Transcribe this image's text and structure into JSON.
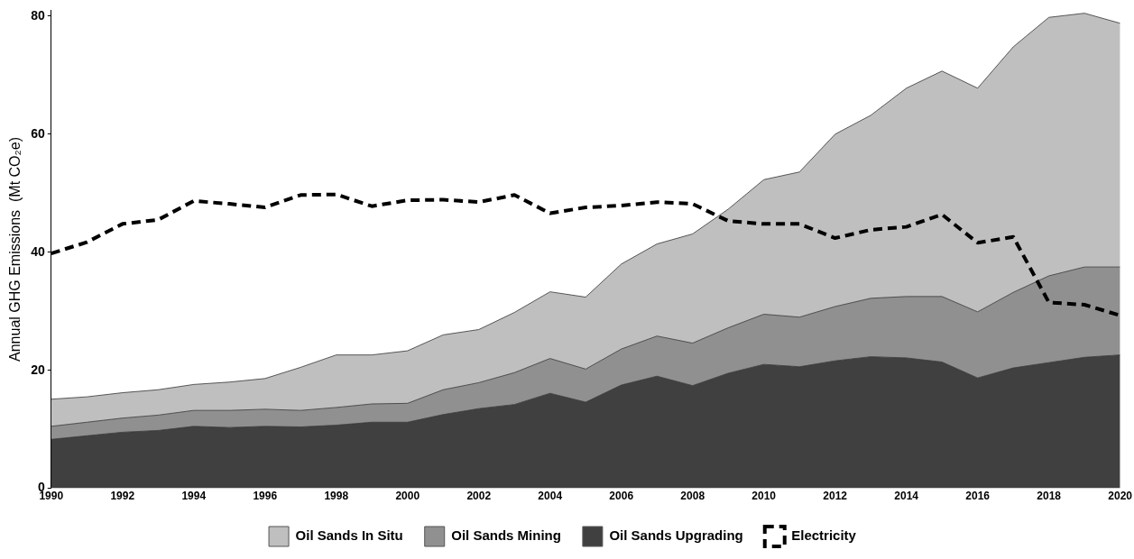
{
  "chart_data": {
    "type": "area",
    "ylabel": "Annual GHG Emissions  (Mt CO₂e)",
    "x": [
      1990,
      1991,
      1992,
      1993,
      1994,
      1995,
      1996,
      1997,
      1998,
      1999,
      2000,
      2001,
      2002,
      2003,
      2004,
      2005,
      2006,
      2007,
      2008,
      2009,
      2010,
      2011,
      2012,
      2013,
      2014,
      2015,
      2016,
      2017,
      2018,
      2019,
      2020
    ],
    "stacked": true,
    "series": [
      {
        "name": "Oil Sands Upgrading",
        "color": "#404040",
        "values": [
          8.3,
          8.9,
          9.5,
          9.8,
          10.5,
          10.3,
          10.5,
          10.4,
          10.7,
          11.2,
          11.2,
          12.5,
          13.5,
          14.2,
          16.1,
          14.6,
          17.5,
          19.0,
          17.4,
          19.5,
          21.0,
          20.6,
          21.6,
          22.3,
          22.1,
          21.4,
          18.7,
          20.4,
          21.3,
          22.2,
          22.6
        ]
      },
      {
        "name": "Oil Sands Mining",
        "color": "#909090",
        "values": [
          2.2,
          2.3,
          2.4,
          2.6,
          2.7,
          2.9,
          2.9,
          2.8,
          3.0,
          3.1,
          3.2,
          4.2,
          4.4,
          5.4,
          5.9,
          5.6,
          6.1,
          6.8,
          7.2,
          7.7,
          8.5,
          8.4,
          9.2,
          9.9,
          10.4,
          11.1,
          11.2,
          12.8,
          14.7,
          15.3,
          14.9
        ]
      },
      {
        "name": "Oil Sands In Situ",
        "color": "#bfbfbf",
        "values": [
          4.6,
          4.3,
          4.3,
          4.3,
          4.4,
          4.8,
          5.2,
          7.3,
          8.9,
          8.3,
          8.9,
          9.3,
          9.0,
          10.2,
          11.3,
          12.2,
          14.4,
          15.6,
          18.5,
          20.1,
          22.8,
          24.6,
          29.2,
          31.0,
          35.3,
          38.2,
          37.9,
          41.6,
          43.8,
          43.0,
          41.3
        ]
      },
      {
        "name": "Electricity",
        "type": "line",
        "line_style": "dashed",
        "color": "#000000",
        "values": [
          39.8,
          41.7,
          44.8,
          45.5,
          48.7,
          48.2,
          47.6,
          49.7,
          49.8,
          47.8,
          48.8,
          48.9,
          48.5,
          49.7,
          46.6,
          47.6,
          47.9,
          48.5,
          48.2,
          45.3,
          44.8,
          44.8,
          42.4,
          43.8,
          44.3,
          46.4,
          41.6,
          42.6,
          31.5,
          31.1,
          29.3
        ]
      }
    ],
    "xlim": [
      1990,
      2020
    ],
    "xticks": [
      1990,
      1992,
      1994,
      1996,
      1998,
      2000,
      2002,
      2004,
      2006,
      2008,
      2010,
      2012,
      2014,
      2016,
      2018,
      2020
    ],
    "ylim": [
      0,
      81
    ],
    "yticks": [
      0,
      20,
      40,
      60,
      80
    ],
    "grid": false,
    "legend": "bottom",
    "marker": "none"
  }
}
